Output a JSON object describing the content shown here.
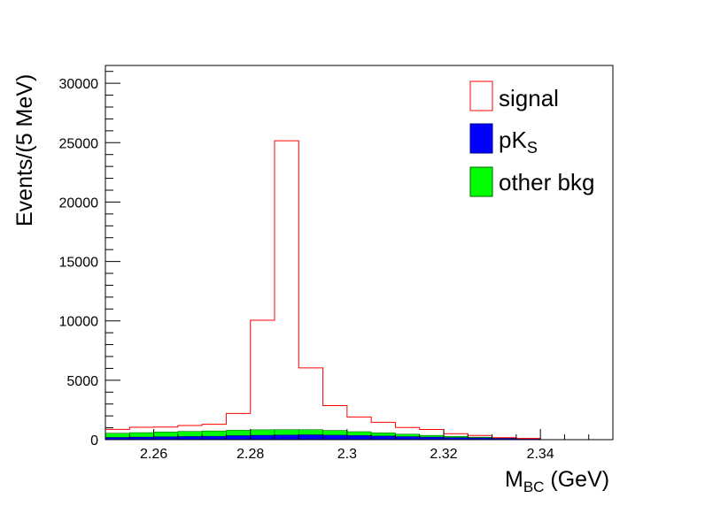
{
  "chart_data": {
    "type": "bar",
    "subtype": "stacked-step-histogram",
    "xlabel_main": "M",
    "xlabel_sub": "BC",
    "xlabel_unit": " (GeV)",
    "ylabel": "Events/(5 MeV)",
    "xlim": [
      2.25,
      2.355
    ],
    "ylim": [
      0,
      31500
    ],
    "x_ticks": [
      "2.26",
      "2.28",
      "2.3",
      "2.32",
      "2.34"
    ],
    "y_ticks": [
      "0",
      "5000",
      "10000",
      "15000",
      "20000",
      "25000",
      "30000"
    ],
    "bin_edges": [
      2.25,
      2.255,
      2.26,
      2.265,
      2.27,
      2.275,
      2.28,
      2.285,
      2.29,
      2.295,
      2.3,
      2.305,
      2.31,
      2.315,
      2.32,
      2.325,
      2.33,
      2.335,
      2.34
    ],
    "series": [
      {
        "name": "pK",
        "name_sub": "S",
        "style": "filled",
        "color": "#0000ff",
        "values": [
          180,
          210,
          240,
          260,
          280,
          330,
          360,
          380,
          400,
          370,
          340,
          300,
          250,
          210,
          170,
          140,
          110,
          80
        ]
      },
      {
        "name": "other bkg",
        "style": "filled",
        "color": "#00ff00",
        "values": [
          360,
          380,
          400,
          430,
          450,
          460,
          470,
          460,
          440,
          400,
          330,
          270,
          210,
          150,
          110,
          70,
          40,
          20
        ]
      },
      {
        "name": "signal",
        "style": "outline",
        "color": "#ff0000",
        "values": [
          330,
          450,
          420,
          500,
          560,
          1420,
          9220,
          24320,
          5200,
          2100,
          1240,
          890,
          560,
          500,
          220,
          140,
          20,
          0
        ]
      }
    ],
    "legend_position": "top-right",
    "grid": false
  }
}
